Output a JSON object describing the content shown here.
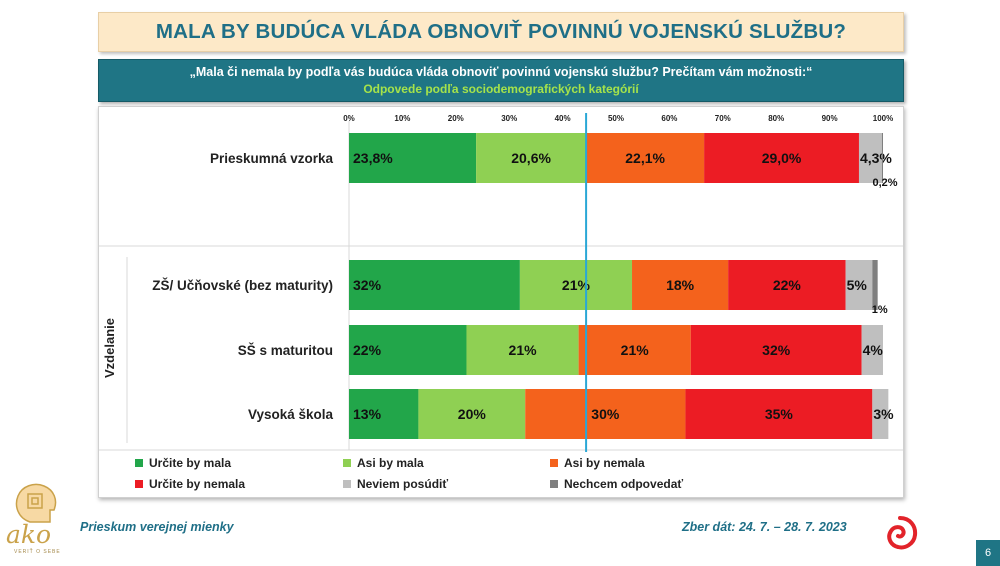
{
  "title": "MALA BY BUDÚCA VLÁDA OBNOVIŤ POVINNÚ VOJENSKÚ SLUŽBU?",
  "question": "„Mala či nemala by podľa vás budúca vláda obnoviť povinnú vojenskú službu? Prečítam vám možnosti:“",
  "subtitle": "Odpovede podľa sociodemografických kategórií",
  "footer": {
    "left": "Prieskum verejnej mienky",
    "right": "Zber dát: 24. 7. – 28. 7. 2023",
    "page": "6",
    "logo_text": "ako",
    "logo_tagline": "VERIŤ O SEBE"
  },
  "colors": {
    "title_text": "#1f6f87",
    "title_bg": "#fde9c8",
    "banner_bg": "#1f7585",
    "subtitle_text": "#a6e34a",
    "reference_line": "#2aa7d6"
  },
  "chart_data": {
    "type": "bar",
    "orientation": "horizontal",
    "stacked": true,
    "x_ticks": [
      "0%",
      "10%",
      "20%",
      "30%",
      "40%",
      "50%",
      "60%",
      "70%",
      "80%",
      "90%",
      "100%"
    ],
    "xlim": [
      0,
      100
    ],
    "reference_line_x": 44.4,
    "group_label": "Vzdelanie",
    "legend_position": "bottom",
    "series": [
      {
        "name": "Určite by mala",
        "color": "#22a64a"
      },
      {
        "name": "Asi by mala",
        "color": "#8fd053"
      },
      {
        "name": "Asi by nemala",
        "color": "#f4621c"
      },
      {
        "name": "Určite by nemala",
        "color": "#ec1c24"
      },
      {
        "name": "Neviem posúdiť",
        "color": "#bfbfbf"
      },
      {
        "name": "Nechcem odpovedať",
        "color": "#7f7f7f"
      }
    ],
    "rows": [
      {
        "category": "Prieskumná vzorka",
        "values": [
          23.8,
          20.6,
          22.1,
          29.0,
          4.3,
          0.2
        ],
        "labels": [
          "23,8%",
          "20,6%",
          "22,1%",
          "29,0%",
          "4,3%",
          "0,2%"
        ]
      },
      {
        "category": "ZŠ/ Učňovské (bez maturity)",
        "values": [
          32,
          21,
          18,
          22,
          5,
          1
        ],
        "labels": [
          "32%",
          "21%",
          "18%",
          "22%",
          "5%",
          "1%"
        ]
      },
      {
        "category": "SŠ s maturitou",
        "values": [
          22,
          21,
          21,
          32,
          4,
          0
        ],
        "labels": [
          "22%",
          "21%",
          "21%",
          "32%",
          "4%",
          ""
        ]
      },
      {
        "category": "Vysoká škola",
        "values": [
          13,
          20,
          30,
          35,
          3,
          0
        ],
        "labels": [
          "13%",
          "20%",
          "30%",
          "35%",
          "3%",
          ""
        ]
      }
    ]
  }
}
